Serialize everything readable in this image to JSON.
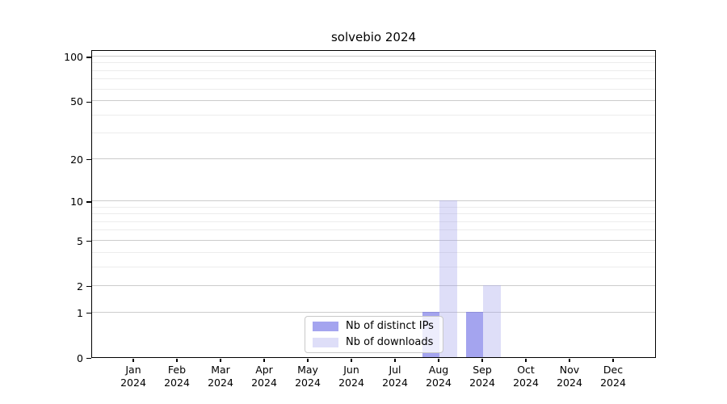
{
  "figure": {
    "background": "#ffffff"
  },
  "chart_data": {
    "type": "bar",
    "title": "solvebio 2024",
    "categories": [
      {
        "month": "Jan",
        "year": "2024"
      },
      {
        "month": "Feb",
        "year": "2024"
      },
      {
        "month": "Mar",
        "year": "2024"
      },
      {
        "month": "Apr",
        "year": "2024"
      },
      {
        "month": "May",
        "year": "2024"
      },
      {
        "month": "Jun",
        "year": "2024"
      },
      {
        "month": "Jul",
        "year": "2024"
      },
      {
        "month": "Aug",
        "year": "2024"
      },
      {
        "month": "Sep",
        "year": "2024"
      },
      {
        "month": "Oct",
        "year": "2024"
      },
      {
        "month": "Nov",
        "year": "2024"
      },
      {
        "month": "Dec",
        "year": "2024"
      }
    ],
    "series": [
      {
        "name": "Nb of distinct IPs",
        "color": "rgba(98,98,228,0.58)",
        "values": [
          0,
          0,
          0,
          0,
          0,
          0,
          0,
          1,
          1,
          0,
          0,
          0
        ]
      },
      {
        "name": "Nb of downloads",
        "color": "rgba(160,160,235,0.35)",
        "values": [
          0,
          0,
          0,
          0,
          0,
          0,
          0,
          10,
          2,
          0,
          0,
          0
        ]
      }
    ],
    "xlabel": "",
    "ylabel": "",
    "yscale": "log1p",
    "ylim": [
      0,
      111
    ],
    "yticks_major": [
      0,
      1,
      2,
      5,
      10,
      20,
      50,
      100
    ],
    "yticks_minor": [
      3,
      4,
      6,
      7,
      8,
      9,
      30,
      40,
      60,
      70,
      80,
      90
    ],
    "grid": true,
    "grid_major_color": "#cccccc",
    "grid_minor_color": "#ececec",
    "axis_color": "#000000",
    "legend_position": "lower-center-inside"
  }
}
